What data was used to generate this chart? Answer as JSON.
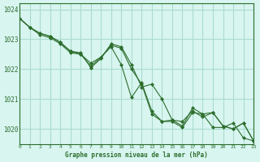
{
  "title": "Graphe pression niveau de la mer (hPa)",
  "bg_color": "#d8f5f0",
  "grid_color": "#aaddcc",
  "line_color": "#2d6e2d",
  "marker_color": "#2d6e2d",
  "xlim": [
    0,
    23
  ],
  "ylim": [
    1019.5,
    1024.2
  ],
  "yticks": [
    1020,
    1021,
    1022,
    1023,
    1024
  ],
  "xticks": [
    0,
    1,
    2,
    3,
    4,
    5,
    6,
    7,
    8,
    9,
    10,
    11,
    12,
    13,
    14,
    15,
    16,
    17,
    18,
    19,
    20,
    21,
    22,
    23
  ],
  "series1": [
    1023.7,
    1023.4,
    1023.2,
    1023.1,
    1022.9,
    1022.6,
    1022.5,
    1022.2,
    1022.4,
    1022.75,
    1022.15,
    1021.05,
    1021.55,
    1020.6,
    1020.25,
    1020.3,
    1020.1,
    1020.7,
    1020.5,
    1020.05,
    1020.05,
    1020.2,
    1019.7,
    1019.6
  ],
  "series2": [
    1023.7,
    1023.4,
    1023.2,
    1023.1,
    1022.9,
    1022.6,
    1022.55,
    1022.05,
    1022.35,
    1022.85,
    1022.75,
    1022.15,
    1021.4,
    1021.5,
    1021.0,
    1020.3,
    1020.25,
    1020.6,
    1020.4,
    1020.55,
    1020.1,
    1020.0,
    1020.2,
    1019.6
  ],
  "series3": [
    1023.7,
    1023.4,
    1023.15,
    1023.05,
    1022.85,
    1022.55,
    1022.5,
    1022.1,
    1022.4,
    1022.8,
    1022.7,
    1022.0,
    1021.5,
    1020.5,
    1020.25,
    1020.25,
    1020.05,
    1020.55,
    1020.5,
    1020.55,
    1020.1,
    1020.0,
    1020.2,
    1019.6
  ]
}
